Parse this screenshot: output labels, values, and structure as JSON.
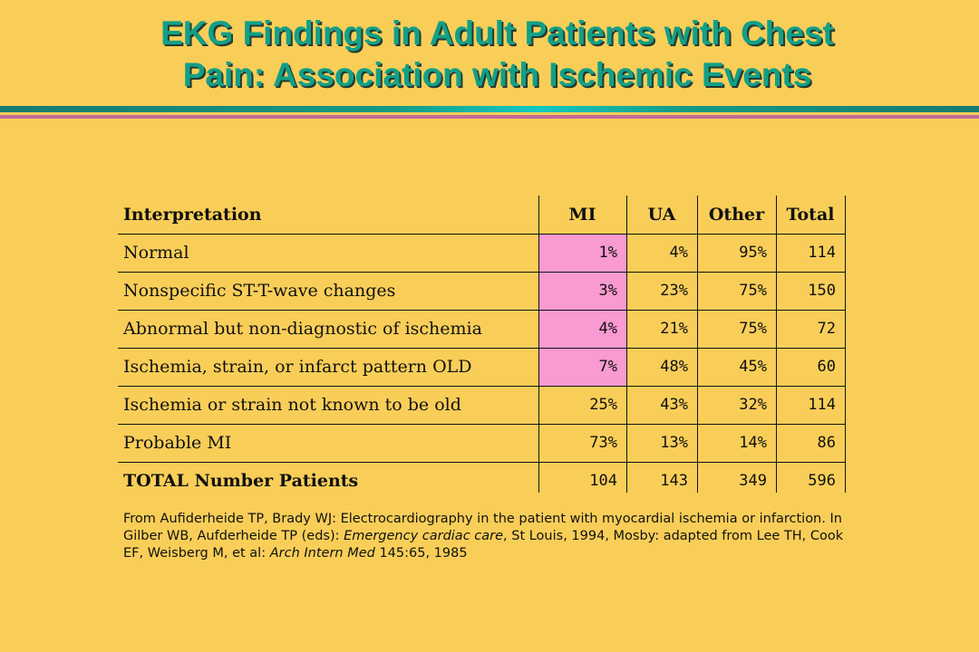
{
  "title": {
    "line1": "EKG Findings in Adult Patients with Chest",
    "line2": "Pain: Association with Ischemic Events"
  },
  "colors": {
    "background": "#f9ce58",
    "title": "#12a087",
    "highlight": "#f99ad0",
    "bar_teal": "#159a84",
    "bar_pink": "#c06a9b"
  },
  "table": {
    "headers": [
      "Interpretation",
      "MI",
      "UA",
      "Other",
      "Total"
    ],
    "rows": [
      {
        "label": "Normal",
        "mi": "1%",
        "ua": "4%",
        "other": "95%",
        "total": "114"
      },
      {
        "label": "Nonspecific ST-T-wave changes",
        "mi": "3%",
        "ua": "23%",
        "other": "75%",
        "total": "150"
      },
      {
        "label": "Abnormal but non-diagnostic of ischemia",
        "mi": "4%",
        "ua": "21%",
        "other": "75%",
        "total": "72"
      },
      {
        "label": "Ischemia, strain, or infarct pattern OLD",
        "mi": "7%",
        "ua": "48%",
        "other": "45%",
        "total": "60"
      },
      {
        "label": "Ischemia or strain not known to be old",
        "mi": "25%",
        "ua": "43%",
        "other": "32%",
        "total": "114"
      },
      {
        "label": "Probable MI",
        "mi": "73%",
        "ua": "13%",
        "other": "14%",
        "total": "86"
      }
    ],
    "footer": {
      "label": "TOTAL Number Patients",
      "mi": "104",
      "ua": "143",
      "other": "349",
      "total": "596"
    }
  },
  "citation": {
    "part1": "From Aufiderheide TP, Brady WJ: Electrocardiography in the patient with myocardial ischemia or infarction. In Gilber WB, Aufderheide TP (eds): ",
    "book": "Emergency cardiac care",
    "part2": ", St Louis, 1994, Mosby: adapted from Lee TH, Cook EF, Weisberg M, et al: ",
    "journal": "Arch Intern Med",
    "part3": " 145:65, 1985"
  }
}
